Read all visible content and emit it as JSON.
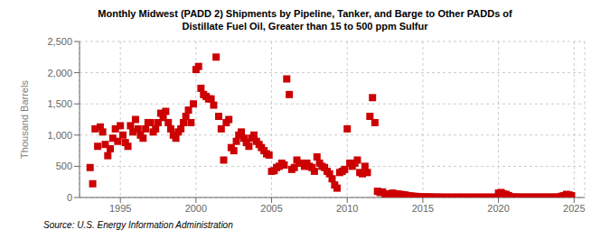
{
  "chart_data": {
    "type": "scatter",
    "title": "Monthly Midwest (PADD 2) Shipments by Pipeline, Tanker, and Barge to Other PADDs of\nDistillate Fuel Oil, Greater than 15 to 500 ppm Sulfur",
    "y_label": "Thousand Barrels",
    "annotations": [
      "Source: U.S. Energy Information Administration"
    ],
    "color": "#cc0000",
    "marker": "square",
    "grid": true,
    "xlim": [
      1992.3,
      2025.7
    ],
    "xticks": [
      1995,
      2000,
      2005,
      2010,
      2015,
      2020,
      2025
    ],
    "ylim": [
      0,
      2500
    ],
    "yticks": [
      0,
      500,
      {
        "value": 1000,
        "label": "1,000"
      },
      {
        "value": 1500,
        "label": "1,500"
      },
      {
        "value": 2000,
        "label": "2,000"
      },
      {
        "value": 2500,
        "label": "2,500"
      }
    ],
    "x": [
      1993.0,
      1993.17,
      1993.33,
      1993.5,
      1993.67,
      1993.83,
      1994.0,
      1994.17,
      1994.33,
      1994.5,
      1994.67,
      1994.83,
      1995.0,
      1995.17,
      1995.33,
      1995.5,
      1995.67,
      1995.83,
      1996.0,
      1996.17,
      1996.33,
      1996.5,
      1996.67,
      1996.83,
      1997.0,
      1997.17,
      1997.33,
      1997.5,
      1997.67,
      1997.83,
      1998.0,
      1998.17,
      1998.33,
      1998.5,
      1998.67,
      1998.83,
      1999.0,
      1999.17,
      1999.33,
      1999.5,
      1999.67,
      1999.83,
      2000.0,
      2000.17,
      2000.33,
      2000.5,
      2000.67,
      2000.83,
      2001.0,
      2001.17,
      2001.33,
      2001.5,
      2001.67,
      2001.83,
      2002.0,
      2002.17,
      2002.33,
      2002.5,
      2002.67,
      2002.83,
      2003.0,
      2003.17,
      2003.33,
      2003.5,
      2003.67,
      2003.83,
      2004.0,
      2004.17,
      2004.33,
      2004.5,
      2004.67,
      2004.83,
      2005.0,
      2005.17,
      2005.33,
      2005.5,
      2005.67,
      2005.83,
      2006.0,
      2006.17,
      2006.33,
      2006.5,
      2006.67,
      2006.83,
      2007.0,
      2007.17,
      2007.33,
      2007.5,
      2007.67,
      2007.83,
      2008.0,
      2008.17,
      2008.33,
      2008.5,
      2008.67,
      2008.83,
      2009.0,
      2009.17,
      2009.33,
      2009.5,
      2009.67,
      2009.83,
      2010.0,
      2010.17,
      2010.33,
      2010.5,
      2010.67,
      2010.83,
      2011.0,
      2011.17,
      2011.33,
      2011.5,
      2011.67,
      2011.83,
      2012.0,
      2012.17,
      2012.33,
      2012.5,
      2012.67,
      2012.83,
      2013.0,
      2013.17,
      2013.33,
      2013.5,
      2013.67,
      2013.83,
      2014.0,
      2014.17,
      2014.33,
      2014.5,
      2014.67,
      2014.83,
      2015.0,
      2015.17,
      2015.33,
      2015.5,
      2015.67,
      2015.83,
      2016.0,
      2016.17,
      2016.33,
      2016.5,
      2016.67,
      2016.83,
      2017.0,
      2017.17,
      2017.33,
      2017.5,
      2017.67,
      2017.83,
      2018.0,
      2018.17,
      2018.33,
      2018.5,
      2018.67,
      2018.83,
      2019.0,
      2019.17,
      2019.33,
      2019.5,
      2019.67,
      2019.83,
      2020.0,
      2020.17,
      2020.33,
      2020.5,
      2020.67,
      2020.83,
      2021.0,
      2021.17,
      2021.33,
      2021.5,
      2021.67,
      2021.83,
      2022.0,
      2022.17,
      2022.33,
      2022.5,
      2022.67,
      2022.83,
      2023.0,
      2023.17,
      2023.33,
      2023.5,
      2023.67,
      2023.83,
      2024.0,
      2024.17,
      2024.33,
      2024.5,
      2024.67,
      2024.83
    ],
    "values": [
      480,
      220,
      1100,
      820,
      1130,
      1050,
      850,
      670,
      780,
      950,
      1100,
      900,
      1150,
      1000,
      880,
      820,
      1150,
      1050,
      1250,
      1100,
      1000,
      950,
      1100,
      1200,
      1200,
      1050,
      1100,
      1200,
      1350,
      1280,
      1380,
      1200,
      1100,
      1000,
      950,
      1050,
      1100,
      1200,
      1300,
      1400,
      1200,
      1500,
      2050,
      2100,
      1750,
      1650,
      1620,
      1580,
      1580,
      1480,
      2250,
      1300,
      1100,
      600,
      1200,
      1250,
      800,
      750,
      900,
      1000,
      1050,
      950,
      880,
      820,
      950,
      1000,
      900,
      850,
      800,
      750,
      700,
      680,
      420,
      430,
      480,
      500,
      550,
      520,
      1900,
      1650,
      450,
      480,
      600,
      550,
      550,
      500,
      550,
      500,
      480,
      420,
      650,
      550,
      500,
      480,
      420,
      380,
      300,
      200,
      150,
      400,
      420,
      450,
      1100,
      550,
      500,
      550,
      600,
      400,
      380,
      500,
      400,
      1300,
      1600,
      1200,
      100,
      80,
      90,
      50,
      60,
      55,
      70,
      60,
      55,
      50,
      45,
      40,
      30,
      25,
      20,
      18,
      15,
      12,
      10,
      8,
      8,
      7,
      6,
      5,
      5,
      5,
      4,
      4,
      4,
      4,
      4,
      4,
      4,
      4,
      4,
      4,
      4,
      4,
      4,
      4,
      4,
      4,
      4,
      4,
      4,
      4,
      4,
      4,
      70,
      80,
      60,
      50,
      30,
      10,
      8,
      6,
      5,
      5,
      5,
      5,
      5,
      5,
      5,
      5,
      5,
      5,
      5,
      5,
      5,
      5,
      5,
      5,
      5,
      20,
      30,
      50,
      40,
      30
    ]
  }
}
